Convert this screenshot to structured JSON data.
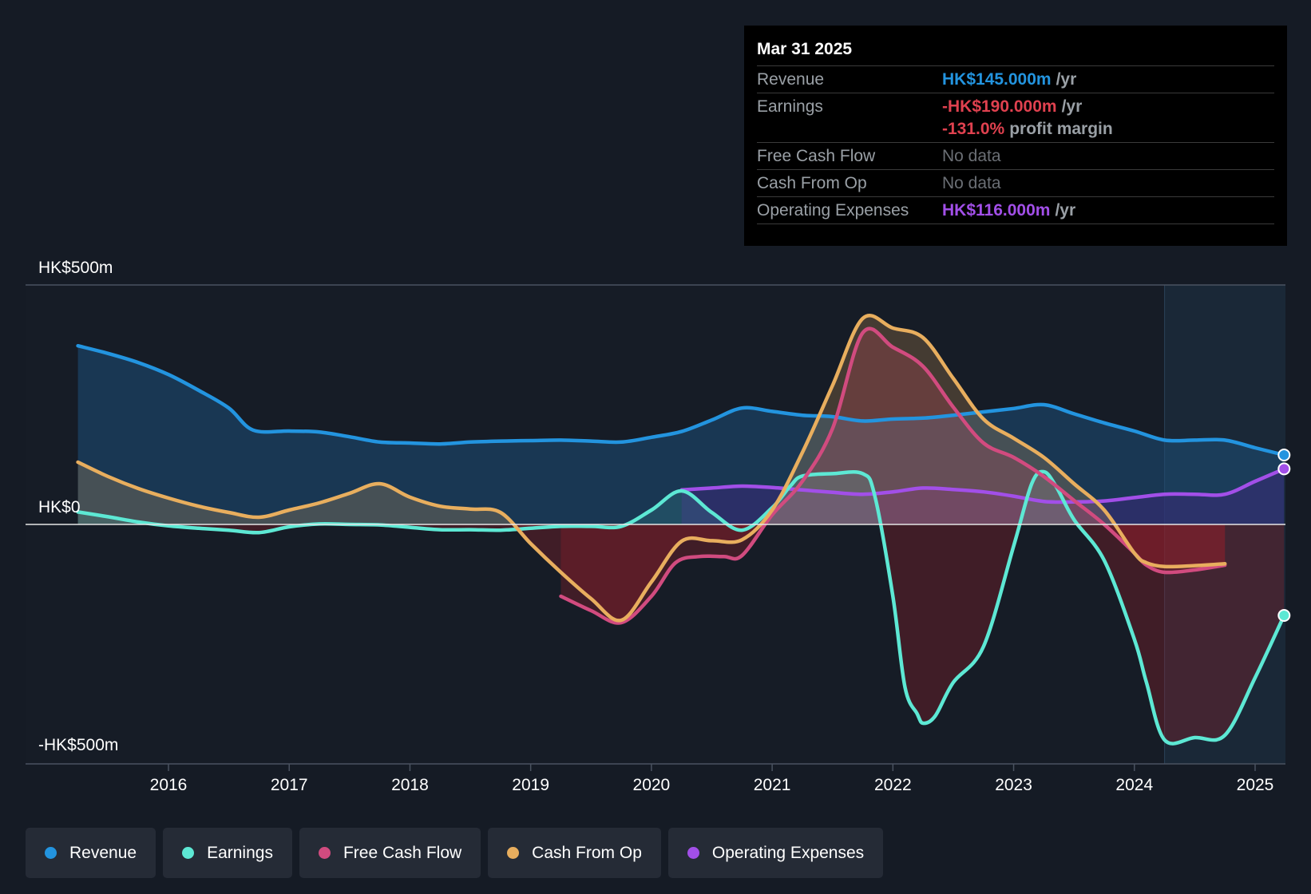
{
  "chart_data": {
    "type": "area",
    "ylim": [
      -500,
      500
    ],
    "xlim": [
      2014.83,
      2025.24
    ],
    "y_tick_labels": [
      {
        "value": 500,
        "label": "HK$500m"
      },
      {
        "value": 0,
        "label": "HK$0"
      },
      {
        "value": -500,
        "label": "-HK$500m"
      }
    ],
    "x_ticks": [
      2016,
      2017,
      2018,
      2019,
      2020,
      2021,
      2022,
      2023,
      2024,
      2025
    ],
    "forecast_start": 2024.25,
    "series": [
      {
        "key": "revenue",
        "name": "Revenue",
        "color": "#2394df",
        "x": [
          2015.25,
          2015.5,
          2015.75,
          2016.0,
          2016.25,
          2016.5,
          2016.7,
          2017.0,
          2017.25,
          2017.5,
          2017.75,
          2018.0,
          2018.25,
          2018.5,
          2018.75,
          2019.0,
          2019.25,
          2019.5,
          2019.75,
          2020.0,
          2020.25,
          2020.5,
          2020.75,
          2021.0,
          2021.25,
          2021.5,
          2021.75,
          2022.0,
          2022.25,
          2022.5,
          2022.75,
          2023.0,
          2023.25,
          2023.5,
          2023.75,
          2024.0,
          2024.25,
          2024.5,
          2024.75,
          2025.0,
          2025.24
        ],
        "y": [
          373,
          357,
          338,
          313,
          280,
          243,
          197,
          195,
          193,
          183,
          172,
          170,
          168,
          172,
          174,
          175,
          176,
          174,
          172,
          182,
          194,
          218,
          243,
          236,
          228,
          225,
          216,
          220,
          222,
          228,
          235,
          242,
          250,
          231,
          212,
          195,
          176,
          176,
          176,
          160,
          145
        ]
      },
      {
        "key": "earnings",
        "name": "Earnings",
        "color": "#5de8d4",
        "x": [
          2015.25,
          2015.5,
          2015.75,
          2016.0,
          2016.25,
          2016.5,
          2016.75,
          2017.0,
          2017.25,
          2017.5,
          2017.75,
          2018.0,
          2018.25,
          2018.5,
          2018.75,
          2019.0,
          2019.25,
          2019.5,
          2019.75,
          2020.0,
          2020.25,
          2020.5,
          2020.75,
          2021.0,
          2021.15,
          2021.25,
          2021.5,
          2021.75,
          2021.85,
          2022.0,
          2022.1,
          2022.2,
          2022.25,
          2022.35,
          2022.5,
          2022.75,
          2023.0,
          2023.15,
          2023.25,
          2023.35,
          2023.5,
          2023.75,
          2024.0,
          2024.1,
          2024.25,
          2024.5,
          2024.75,
          2025.0,
          2025.24
        ],
        "y": [
          26,
          16,
          5,
          -3,
          -8,
          -12,
          -17,
          -5,
          1,
          0,
          -1,
          -6,
          -11,
          -11,
          -12,
          -8,
          -4,
          -4,
          -4,
          30,
          70,
          25,
          -12,
          35,
          80,
          101,
          106,
          106,
          60,
          -150,
          -340,
          -395,
          -415,
          -400,
          -330,
          -255,
          -45,
          85,
          110,
          80,
          10,
          -75,
          -240,
          -330,
          -450,
          -445,
          -440,
          -320,
          -190
        ]
      },
      {
        "key": "fcf",
        "name": "Free Cash Flow",
        "color": "#d14b7f",
        "x": [
          2019.25,
          2019.5,
          2019.75,
          2020.0,
          2020.2,
          2020.4,
          2020.6,
          2020.75,
          2021.0,
          2021.25,
          2021.5,
          2021.75,
          2022.0,
          2022.25,
          2022.5,
          2022.75,
          2023.0,
          2023.25,
          2023.5,
          2023.75,
          2024.0,
          2024.1,
          2024.25,
          2024.5,
          2024.75
        ],
        "y": [
          -150,
          -180,
          -205,
          -150,
          -80,
          -67,
          -67,
          -65,
          20,
          90,
          200,
          400,
          370,
          330,
          245,
          170,
          140,
          100,
          50,
          0,
          -60,
          -85,
          -100,
          -95,
          -85
        ]
      },
      {
        "key": "cfo",
        "name": "Cash From Op",
        "color": "#e8ae5e",
        "x": [
          2015.25,
          2015.5,
          2015.75,
          2016.0,
          2016.25,
          2016.5,
          2016.75,
          2017.0,
          2017.25,
          2017.5,
          2017.75,
          2018.0,
          2018.25,
          2018.5,
          2018.75,
          2019.0,
          2019.25,
          2019.5,
          2019.75,
          2020.0,
          2020.25,
          2020.5,
          2020.75,
          2021.0,
          2021.25,
          2021.5,
          2021.75,
          2022.0,
          2022.25,
          2022.5,
          2022.75,
          2023.0,
          2023.25,
          2023.5,
          2023.75,
          2024.0,
          2024.1,
          2024.25,
          2024.5,
          2024.75
        ],
        "y": [
          130,
          100,
          75,
          55,
          38,
          25,
          15,
          30,
          45,
          65,
          85,
          57,
          38,
          32,
          25,
          -40,
          -100,
          -155,
          -200,
          -120,
          -35,
          -34,
          -32,
          30,
          150,
          290,
          430,
          410,
          390,
          305,
          220,
          180,
          140,
          85,
          30,
          -60,
          -80,
          -88,
          -86,
          -82
        ]
      },
      {
        "key": "opex",
        "name": "Operating Expenses",
        "color": "#a24fe8",
        "x": [
          2020.25,
          2020.5,
          2020.75,
          2021.0,
          2021.25,
          2021.5,
          2021.75,
          2022.0,
          2022.25,
          2022.5,
          2022.75,
          2023.0,
          2023.25,
          2023.5,
          2023.75,
          2024.0,
          2024.25,
          2024.5,
          2024.75,
          2025.0,
          2025.24
        ],
        "y": [
          72,
          76,
          80,
          77,
          72,
          67,
          63,
          68,
          76,
          73,
          68,
          59,
          48,
          47,
          49,
          56,
          63,
          63,
          63,
          90,
          116
        ]
      }
    ]
  },
  "tooltip": {
    "date": "Mar 31 2025",
    "revenue_label": "Revenue",
    "revenue_value": "HK$145.000m",
    "revenue_unit": "/yr",
    "earnings_label": "Earnings",
    "earnings_value": "-HK$190.000m",
    "earnings_unit": "/yr",
    "margin_value": "-131.0%",
    "margin_text": "profit margin",
    "fcf_label": "Free Cash Flow",
    "fcf_value": "No data",
    "cfo_label": "Cash From Op",
    "cfo_value": "No data",
    "opex_label": "Operating Expenses",
    "opex_value": "HK$116.000m",
    "opex_unit": "/yr"
  },
  "legend": [
    {
      "label": "Revenue",
      "color": "#2394df"
    },
    {
      "label": "Earnings",
      "color": "#5de8d4"
    },
    {
      "label": "Free Cash Flow",
      "color": "#d14b7f"
    },
    {
      "label": "Cash From Op",
      "color": "#e8ae5e"
    },
    {
      "label": "Operating Expenses",
      "color": "#a24fe8"
    }
  ],
  "colors": {
    "background": "#151b25",
    "revenue": "#2394df",
    "negative": "#e0414f",
    "opex": "#a24fe8"
  }
}
